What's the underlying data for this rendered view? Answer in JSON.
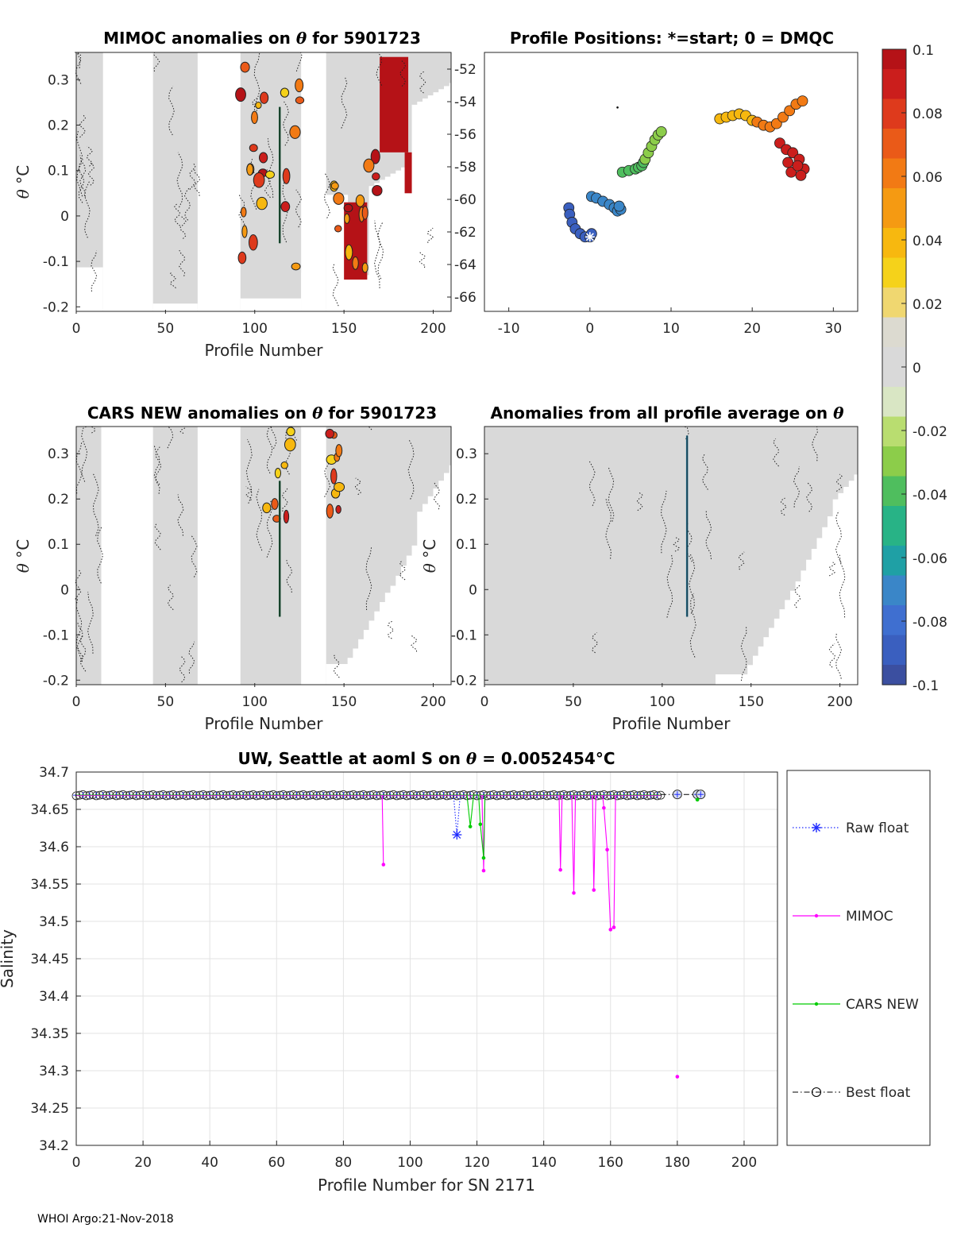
{
  "figure": {
    "footer": "WHOI Argo:21-Nov-2018"
  },
  "panels": {
    "mimoc": {
      "title_pre": "MIMOC anomalies on ",
      "title_theta": "θ",
      "title_post": "  for 5901723",
      "xlabel": "Profile Number",
      "ylabel_theta": "θ",
      "ylabel_unit": "°C",
      "xticks": [
        "0",
        "50",
        "100",
        "150",
        "200"
      ],
      "yticks": [
        "0.3",
        "0.2",
        "0.1",
        "0",
        "-0.1",
        "-0.2"
      ],
      "right_ticks": [
        "-52",
        "-54",
        "-56",
        "-58",
        "-60",
        "-62",
        "-64",
        "-66"
      ]
    },
    "positions": {
      "title": "Profile Positions: *=start; 0 = DMQC",
      "xticks": [
        "-10",
        "0",
        "10",
        "20",
        "30"
      ]
    },
    "cars": {
      "title_pre": "CARS NEW anomalies on ",
      "title_theta": "θ",
      "title_post": " for 5901723",
      "xlabel": "Profile Number",
      "ylabel_theta": "θ",
      "ylabel_unit": "°C",
      "xticks": [
        "0",
        "50",
        "100",
        "150",
        "200"
      ],
      "yticks": [
        "0.3",
        "0.2",
        "0.1",
        "0",
        "-0.1",
        "-0.2"
      ]
    },
    "average": {
      "title_pre": "Anomalies from all profile average on ",
      "title_theta": "θ",
      "xlabel": "Profile Number",
      "ylabel_theta": "θ",
      "ylabel_unit": "°C",
      "xticks": [
        "0",
        "50",
        "100",
        "150",
        "200"
      ],
      "yticks": [
        "0.3",
        "0.2",
        "0.1",
        "0",
        "-0.1",
        "-0.2"
      ]
    },
    "colorbar": {
      "ticks": [
        "0.1",
        "0.08",
        "0.06",
        "0.04",
        "0.02",
        "0",
        "-0.02",
        "-0.04",
        "-0.06",
        "-0.08",
        "-0.1"
      ]
    },
    "salinity": {
      "title_pre": "UW, Seattle at aoml S on ",
      "title_theta": "θ",
      "title_post": " = 0.0052454",
      "title_unit": "°C",
      "xlabel": "Profile Number for SN 2171",
      "ylabel": "Salinity",
      "legend": {
        "raw": "Raw float",
        "mimoc": "MIMOC",
        "cars": "CARS NEW",
        "best": "Best float"
      }
    }
  },
  "colors": {
    "panel_gray": "#d9d9d9",
    "raw": "#1f2bff",
    "mimoc": "#ff00ff",
    "cars": "#00cc00",
    "best": "#000000"
  },
  "chart_data": [
    {
      "type": "heatmap",
      "title": "MIMOC anomalies on θ  for 5901723",
      "xlabel": "Profile Number",
      "ylabel": "θ °C",
      "xlim": [
        0,
        210
      ],
      "ylim": [
        -0.21,
        0.36
      ],
      "gray_spans": [
        [
          0,
          15
        ],
        [
          43,
          68
        ],
        [
          92,
          126
        ],
        [
          140,
          210
        ]
      ],
      "warm_patches": [
        {
          "x": [
            170,
            186
          ],
          "theta": [
            0.14,
            0.35
          ],
          "anomaly": 0.1
        },
        {
          "x": [
            150,
            163
          ],
          "theta": [
            -0.14,
            0.03
          ],
          "anomaly": 0.1
        },
        {
          "x": [
            184,
            188
          ],
          "theta": [
            0.05,
            0.14
          ],
          "anomaly": 0.1
        }
      ]
    },
    {
      "type": "scatter",
      "title": "Profile Positions: *=start; 0 = DMQC",
      "xlim": [
        -13,
        33
      ],
      "ylim": [
        -67,
        -51
      ],
      "start": [
        0,
        -62.4
      ],
      "color_by": "anomaly",
      "clusters": [
        {
          "x": [
            -2.6,
            -2.5,
            -2.2,
            -1.8,
            -1.2,
            -0.6,
            0,
            0.2
          ],
          "y": [
            -60.6,
            -61.0,
            -61.5,
            -61.9,
            -62.2,
            -62.4,
            -62.4,
            -62.2
          ],
          "anomaly": -0.09
        },
        {
          "x": [
            0.2,
            0.8,
            1.6,
            2.4,
            3.0,
            3.4,
            3.8,
            3.6
          ],
          "y": [
            -59.9,
            -60.0,
            -60.2,
            -60.4,
            -60.6,
            -60.8,
            -60.7,
            -60.5
          ],
          "anomaly": -0.065
        },
        {
          "x": [
            4.0,
            4.8,
            5.6,
            6.0,
            6.4,
            6.6
          ],
          "y": [
            -58.4,
            -58.3,
            -58.2,
            -58.1,
            -58.0,
            -57.8
          ],
          "anomaly": -0.045
        },
        {
          "x": [
            6.8,
            7.2,
            7.6,
            8.0,
            8.4,
            8.8
          ],
          "y": [
            -57.6,
            -57.2,
            -56.8,
            -56.4,
            -56.1,
            -55.9
          ],
          "anomaly": -0.025
        },
        {
          "x": [
            16.0,
            16.8,
            17.6,
            18.4,
            19.2,
            20.0
          ],
          "y": [
            -55.1,
            -55.0,
            -54.9,
            -54.8,
            -54.9,
            -55.2
          ],
          "anomaly": 0.045
        },
        {
          "x": [
            20.6,
            21.4,
            22.2,
            23.0,
            23.8,
            24.6,
            25.4,
            26.2
          ],
          "y": [
            -55.3,
            -55.5,
            -55.6,
            -55.4,
            -55.0,
            -54.6,
            -54.2,
            -54.0
          ],
          "anomaly": 0.065
        },
        {
          "x": [
            23.4,
            24.2,
            25.0,
            25.8,
            26.4,
            24.8,
            25.6,
            26.0,
            24.4
          ],
          "y": [
            -56.6,
            -57.0,
            -57.2,
            -57.6,
            -58.2,
            -58.4,
            -58.0,
            -58.6,
            -57.8
          ],
          "anomaly": 0.095
        }
      ]
    },
    {
      "type": "heatmap",
      "title": "CARS NEW anomalies on θ for 5901723",
      "xlabel": "Profile Number",
      "ylabel": "θ °C",
      "xlim": [
        0,
        210
      ],
      "ylim": [
        -0.21,
        0.36
      ],
      "gray_spans": [
        [
          0,
          14
        ],
        [
          43,
          68
        ],
        [
          92,
          126
        ],
        [
          140,
          210
        ]
      ]
    },
    {
      "type": "heatmap",
      "title": "Anomalies from all profile average on θ",
      "xlabel": "Profile Number",
      "ylabel": "θ °C",
      "xlim": [
        0,
        210
      ],
      "ylim": [
        -0.21,
        0.36
      ],
      "gray_spans": [
        [
          0,
          210
        ]
      ]
    },
    {
      "type": "line",
      "title": "UW, Seattle at aoml S on θ = 0.0052454°C",
      "xlabel": "Profile Number for SN 2171",
      "ylabel": "Salinity",
      "xlim": [
        0,
        210
      ],
      "ylim": [
        34.2,
        34.7
      ],
      "xticks": [
        0,
        20,
        40,
        60,
        80,
        100,
        120,
        140,
        160,
        180,
        200
      ],
      "yticks": [
        34.2,
        34.25,
        34.3,
        34.35,
        34.4,
        34.45,
        34.5,
        34.55,
        34.6,
        34.65,
        34.7
      ],
      "grid": true,
      "legend_position": "right-outside",
      "baseline": {
        "x_range": [
          0,
          175
        ],
        "value": 34.669
      },
      "series": [
        {
          "name": "Raw float",
          "style": "dotted-star",
          "outliers": [
            {
              "x": 114,
              "y": 34.616
            }
          ],
          "tail": {
            "x": [
              180,
              186,
              187
            ],
            "y": [
              34.67,
              34.67,
              34.67
            ]
          }
        },
        {
          "name": "MIMOC",
          "style": "solid-dot",
          "outliers": [
            {
              "x": 92,
              "y": 34.576
            },
            {
              "x": 122,
              "y": 34.568
            },
            {
              "x": 145,
              "y": 34.569
            },
            {
              "x": 149,
              "y": 34.538
            },
            {
              "x": 155,
              "y": 34.542
            },
            {
              "x": 158,
              "y": 34.652
            },
            {
              "x": 159,
              "y": 34.596
            },
            {
              "x": 160,
              "y": 34.489
            },
            {
              "x": 161,
              "y": 34.492
            },
            {
              "x": 180,
              "y": 34.292
            }
          ]
        },
        {
          "name": "CARS NEW",
          "style": "solid-dot",
          "outliers": [
            {
              "x": 118,
              "y": 34.627
            },
            {
              "x": 121,
              "y": 34.63
            },
            {
              "x": 122,
              "y": 34.585
            },
            {
              "x": 186,
              "y": 34.663
            }
          ]
        },
        {
          "name": "Best float",
          "style": "dashdot-circle",
          "tail": {
            "x": [
              180,
              186,
              187
            ],
            "y": [
              34.67,
              34.67,
              34.67
            ]
          }
        }
      ]
    }
  ]
}
